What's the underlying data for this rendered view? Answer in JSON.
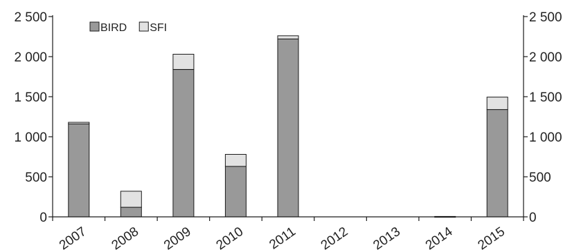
{
  "chart_data": {
    "type": "bar",
    "stacked": true,
    "categories": [
      "2007",
      "2008",
      "2009",
      "2010",
      "2011",
      "2012",
      "2013",
      "2014",
      "2015"
    ],
    "series": [
      {
        "name": "BIRD",
        "color": "#999999",
        "values": [
          1160,
          120,
          1840,
          630,
          2220,
          0,
          0,
          5,
          1340
        ]
      },
      {
        "name": "SFI",
        "color": "#e2e2e2",
        "values": [
          20,
          200,
          190,
          150,
          40,
          0,
          0,
          0,
          155
        ]
      }
    ],
    "ylim": [
      0,
      2500
    ],
    "yticks": [
      0,
      500,
      1000,
      1500,
      2000,
      2500
    ],
    "ytick_labels": [
      "0",
      "500",
      "1 000",
      "1 500",
      "2 000",
      "2 500"
    ],
    "dual_y_axis": true,
    "grid": false,
    "legend_position": "top-left",
    "title": "",
    "xlabel": "",
    "ylabel": ""
  }
}
